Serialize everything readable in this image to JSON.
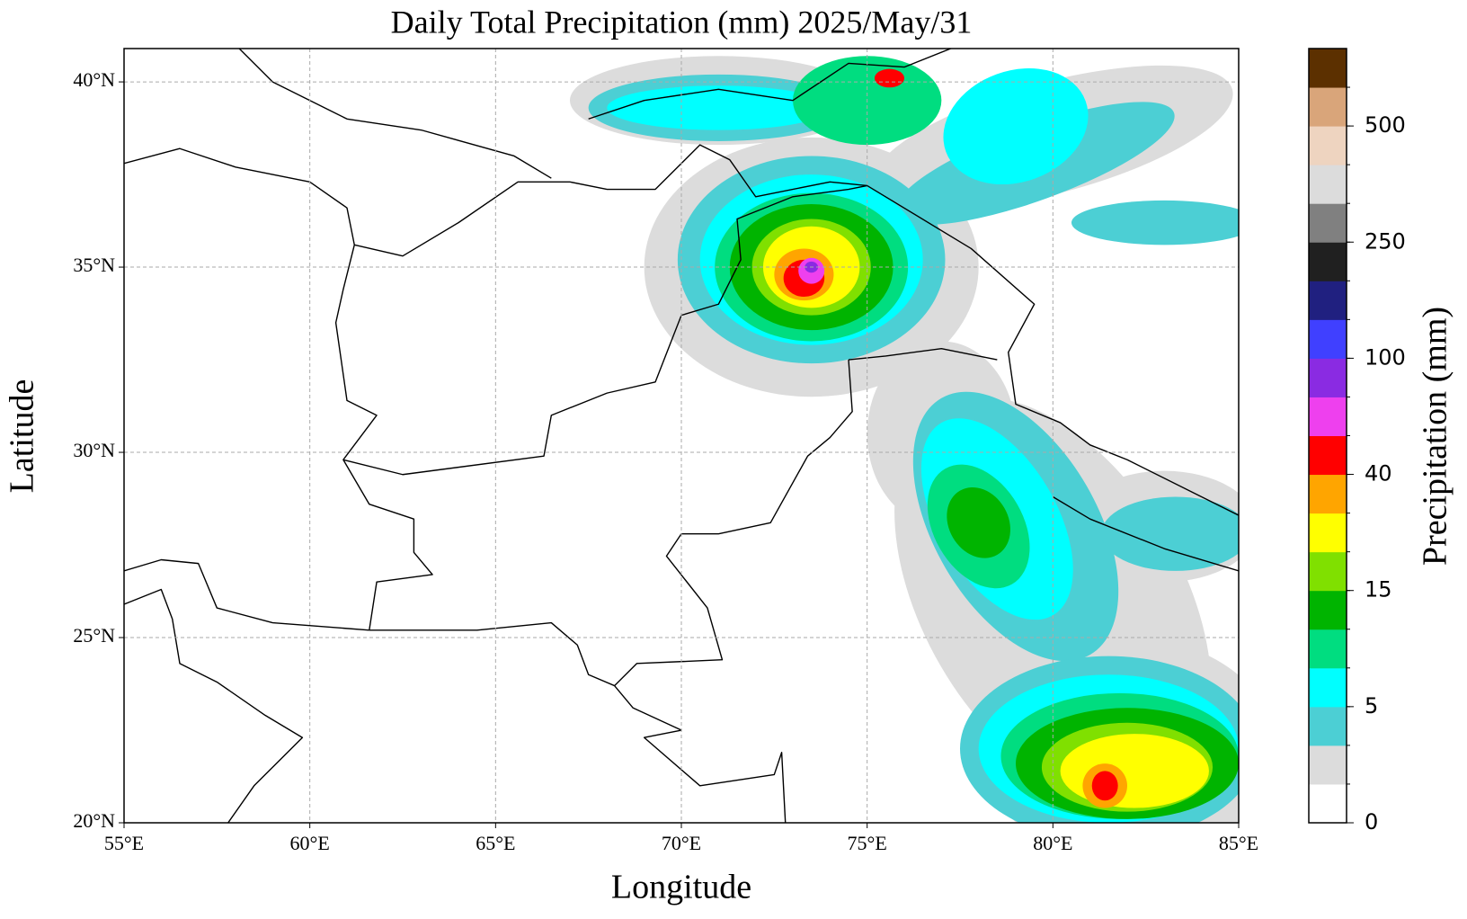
{
  "chart_data": {
    "type": "contour-map",
    "title": "Daily Total Precipitation (mm)  2025/May/31",
    "xlabel": "Longitude",
    "ylabel": "Latitude",
    "xlim": [
      55,
      85
    ],
    "ylim": [
      20,
      40.9
    ],
    "xticks": [
      {
        "value": 55,
        "label": "55°E"
      },
      {
        "value": 60,
        "label": "60°E"
      },
      {
        "value": 65,
        "label": "65°E"
      },
      {
        "value": 70,
        "label": "70°E"
      },
      {
        "value": 75,
        "label": "75°E"
      },
      {
        "value": 80,
        "label": "80°E"
      },
      {
        "value": 85,
        "label": "85°E"
      }
    ],
    "yticks": [
      {
        "value": 20,
        "label": "20°N"
      },
      {
        "value": 25,
        "label": "25°N"
      },
      {
        "value": 30,
        "label": "30°N"
      },
      {
        "value": 35,
        "label": "35°N"
      },
      {
        "value": 40,
        "label": "40°N"
      }
    ],
    "grid": true,
    "colorbar": {
      "label": "Precipitation (mm)",
      "colors": [
        "#ffffff",
        "#dcdcdc",
        "#4ccfd4",
        "#00ffff",
        "#00dd80",
        "#00b400",
        "#80e000",
        "#ffff00",
        "#ffa500",
        "#ff0000",
        "#ee40ee",
        "#8a2be2",
        "#4040ff",
        "#202080",
        "#202020",
        "#808080",
        "#dcdcdc",
        "#eed4c0",
        "#d9a57a",
        "#5c3000"
      ],
      "ticks": [
        0,
        5,
        15,
        40,
        100,
        250,
        500
      ]
    }
  }
}
